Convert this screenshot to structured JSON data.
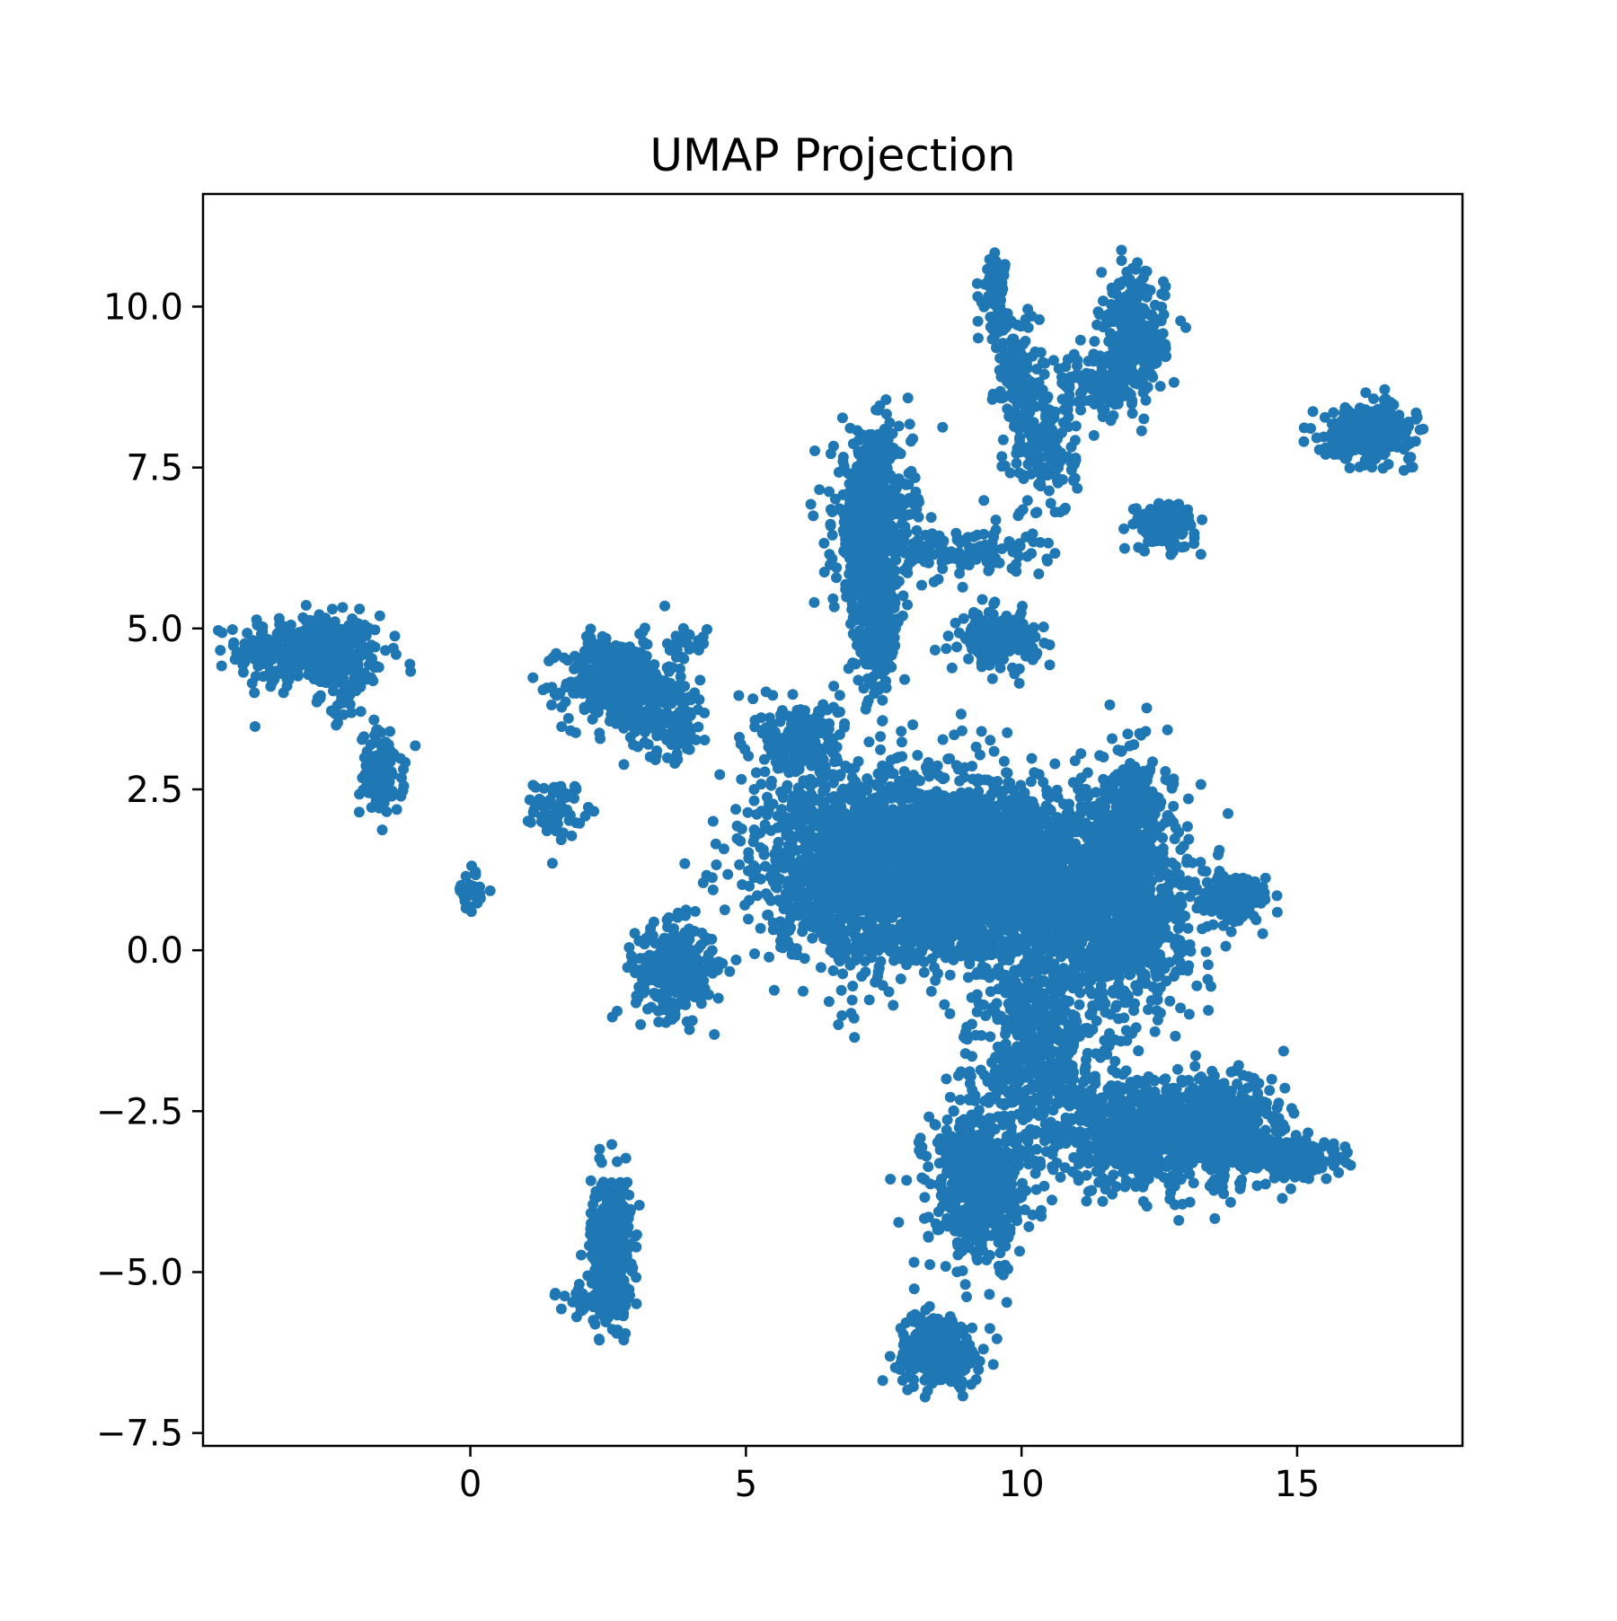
{
  "chart_data": {
    "type": "scatter",
    "title": "UMAP Projection",
    "xlabel": "",
    "ylabel": "",
    "xlim": [
      -4.85,
      18.0
    ],
    "ylim": [
      -7.7,
      11.75
    ],
    "x_ticks": [
      {
        "value": 0,
        "label": "0"
      },
      {
        "value": 5,
        "label": "5"
      },
      {
        "value": 10,
        "label": "10"
      },
      {
        "value": 15,
        "label": "15"
      }
    ],
    "y_ticks": [
      {
        "value": -7.5,
        "label": "−7.5"
      },
      {
        "value": -5.0,
        "label": "−5.0"
      },
      {
        "value": -2.5,
        "label": "−2.5"
      },
      {
        "value": 0.0,
        "label": "0.0"
      },
      {
        "value": 2.5,
        "label": "2.5"
      },
      {
        "value": 5.0,
        "label": "5.0"
      },
      {
        "value": 7.5,
        "label": "7.5"
      },
      {
        "value": 10.0,
        "label": "10.0"
      }
    ],
    "grid": false,
    "legend": "none",
    "color": "#1f77b4",
    "clusters": [
      {
        "center": [
          -2.9,
          4.65
        ],
        "spread": [
          0.65,
          0.28
        ],
        "n": 420
      },
      {
        "center": [
          -2.2,
          4.0
        ],
        "spread": [
          0.25,
          0.2
        ],
        "n": 40
      },
      {
        "center": [
          -1.6,
          2.75
        ],
        "spread": [
          0.2,
          0.32
        ],
        "n": 110
      },
      {
        "center": [
          0.0,
          0.95
        ],
        "spread": [
          0.12,
          0.18
        ],
        "n": 30
      },
      {
        "center": [
          1.6,
          2.2
        ],
        "spread": [
          0.22,
          0.22
        ],
        "n": 70
      },
      {
        "center": [
          2.7,
          4.15
        ],
        "spread": [
          0.5,
          0.35
        ],
        "n": 420
      },
      {
        "center": [
          3.6,
          3.6
        ],
        "spread": [
          0.4,
          0.3
        ],
        "n": 120
      },
      {
        "center": [
          3.9,
          4.8
        ],
        "spread": [
          0.2,
          0.12
        ],
        "n": 25
      },
      {
        "center": [
          3.7,
          -0.3
        ],
        "spread": [
          0.35,
          0.35
        ],
        "n": 320
      },
      {
        "center": [
          2.55,
          -4.6
        ],
        "spread": [
          0.18,
          0.55
        ],
        "n": 420
      },
      {
        "center": [
          2.2,
          -5.4
        ],
        "spread": [
          0.35,
          0.12
        ],
        "n": 40
      },
      {
        "center": [
          8.5,
          -6.2
        ],
        "spread": [
          0.38,
          0.28
        ],
        "n": 280
      },
      {
        "center": [
          7.3,
          6.6
        ],
        "spread": [
          0.35,
          0.7
        ],
        "n": 650
      },
      {
        "center": [
          7.4,
          5.0
        ],
        "spread": [
          0.2,
          0.55
        ],
        "n": 220
      },
      {
        "center": [
          9.6,
          4.85
        ],
        "spread": [
          0.35,
          0.2
        ],
        "n": 200
      },
      {
        "center": [
          9.5,
          10.25
        ],
        "spread": [
          0.12,
          0.3
        ],
        "n": 70
      },
      {
        "center": [
          9.9,
          9.0
        ],
        "spread": [
          0.2,
          0.5
        ],
        "n": 120
      },
      {
        "center": [
          10.4,
          7.8
        ],
        "spread": [
          0.3,
          0.55
        ],
        "n": 160
      },
      {
        "center": [
          12.0,
          9.5
        ],
        "spread": [
          0.3,
          0.5
        ],
        "n": 280
      },
      {
        "center": [
          11.3,
          8.8
        ],
        "spread": [
          0.4,
          0.25
        ],
        "n": 90
      },
      {
        "center": [
          12.6,
          6.6
        ],
        "spread": [
          0.28,
          0.18
        ],
        "n": 160
      },
      {
        "center": [
          16.3,
          8.05
        ],
        "spread": [
          0.4,
          0.2
        ],
        "n": 360
      },
      {
        "center": [
          9.0,
          6.2
        ],
        "spread": [
          0.7,
          0.2
        ],
        "n": 120
      },
      {
        "center": [
          6.0,
          3.2
        ],
        "spread": [
          0.35,
          0.35
        ],
        "n": 220
      },
      {
        "center": [
          7.8,
          1.3
        ],
        "spread": [
          1.2,
          0.75
        ],
        "n": 2500
      },
      {
        "center": [
          10.2,
          1.1
        ],
        "spread": [
          1.1,
          0.6
        ],
        "n": 1700
      },
      {
        "center": [
          11.9,
          0.6
        ],
        "spread": [
          0.6,
          0.8
        ],
        "n": 800
      },
      {
        "center": [
          12.0,
          2.2
        ],
        "spread": [
          0.3,
          0.55
        ],
        "n": 220
      },
      {
        "center": [
          13.9,
          0.8
        ],
        "spread": [
          0.3,
          0.18
        ],
        "n": 140
      },
      {
        "center": [
          10.3,
          -1.5
        ],
        "spread": [
          0.55,
          0.7
        ],
        "n": 500
      },
      {
        "center": [
          9.2,
          -3.6
        ],
        "spread": [
          0.45,
          0.6
        ],
        "n": 550
      },
      {
        "center": [
          12.2,
          -2.8
        ],
        "spread": [
          0.85,
          0.45
        ],
        "n": 700
      },
      {
        "center": [
          13.7,
          -2.8
        ],
        "spread": [
          0.5,
          0.4
        ],
        "n": 450
      },
      {
        "center": [
          15.0,
          -3.25
        ],
        "spread": [
          0.4,
          0.15
        ],
        "n": 220
      }
    ]
  }
}
